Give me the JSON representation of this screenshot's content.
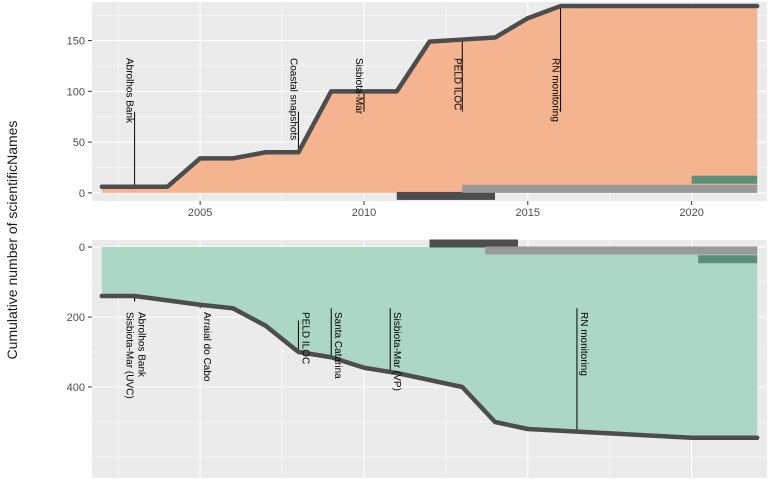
{
  "ylabel": "Cumulative number of scientificNames",
  "colors": {
    "panel_bg": "#ebebeb",
    "grid": "#ffffff",
    "top_fill": "#f4b490",
    "bottom_fill": "#acd6c6",
    "line": "#4d4d4d",
    "bar_dark": "#4d4d4d",
    "bar_grey": "#999999",
    "bar_green": "#5a8f78"
  },
  "chart_data": [
    {
      "type": "area",
      "panel": "top",
      "xlim": [
        2001.7,
        2022.3
      ],
      "ylim": [
        -8,
        188
      ],
      "x_ticks": [
        2005,
        2010,
        2015,
        2020
      ],
      "x_tick_labels": [
        "2005",
        "2010",
        "2015",
        "2020"
      ],
      "y_ticks": [
        0,
        50,
        100,
        150
      ],
      "y_tick_labels": [
        "0",
        "50",
        "100",
        "150"
      ],
      "points": [
        [
          2002,
          6
        ],
        [
          2004,
          6
        ],
        [
          2005,
          34
        ],
        [
          2006,
          34
        ],
        [
          2007,
          40
        ],
        [
          2008,
          40
        ],
        [
          2009,
          100
        ],
        [
          2010,
          100
        ],
        [
          2011,
          100
        ],
        [
          2012,
          149
        ],
        [
          2013,
          151
        ],
        [
          2014,
          153
        ],
        [
          2015,
          172
        ],
        [
          2016,
          184
        ],
        [
          2018,
          184
        ],
        [
          2022,
          184
        ]
      ],
      "annotations": [
        {
          "label": "Abrolhos Bank",
          "x": 2003,
          "y": 80
        },
        {
          "label": "Coastal snapshots",
          "x": 2008,
          "y": 80
        },
        {
          "label": "Sisbiota-Mar",
          "x": 2010,
          "y": 80
        },
        {
          "label": "PELD ILOC",
          "x": 2013,
          "y": 80
        },
        {
          "label": "RN monitoring",
          "x": 2016,
          "y": 80
        }
      ],
      "bars": [
        {
          "x0": 2011,
          "x1": 2014,
          "y": -3,
          "color": "bar_dark"
        },
        {
          "x0": 2013,
          "x1": 2022,
          "y": 4,
          "color": "bar_grey"
        },
        {
          "x0": 2020,
          "x1": 2022,
          "y": 13,
          "color": "bar_green"
        }
      ]
    },
    {
      "type": "area",
      "panel": "bottom",
      "xlim": [
        2001.7,
        2022.3
      ],
      "ylim": [
        -20,
        660
      ],
      "y_reversed": true,
      "y_ticks": [
        0,
        200,
        400
      ],
      "y_tick_labels": [
        "0",
        "200",
        "400"
      ],
      "points": [
        [
          2002,
          140
        ],
        [
          2003,
          140
        ],
        [
          2005,
          165
        ],
        [
          2006,
          175
        ],
        [
          2007,
          225
        ],
        [
          2008,
          300
        ],
        [
          2009,
          315
        ],
        [
          2010,
          345
        ],
        [
          2011,
          360
        ],
        [
          2012,
          380
        ],
        [
          2013,
          400
        ],
        [
          2014,
          500
        ],
        [
          2015,
          520
        ],
        [
          2017,
          530
        ],
        [
          2020,
          545
        ],
        [
          2022,
          545
        ]
      ],
      "annotations": [
        {
          "label": "Abrolhos Bank",
          "x": 2003,
          "y": 155
        },
        {
          "label": "Sisbiota-Mar (UVC)",
          "x": 2003,
          "y": 155
        },
        {
          "label": "Arraial do Cabo",
          "x": 2005,
          "y": 175
        },
        {
          "label": "PELD ILOC",
          "x": 2008,
          "y": 210
        },
        {
          "label": "Santa Catarina",
          "x": 2009,
          "y": 175
        },
        {
          "label": "Sisbiota-Mar (VP)",
          "x": 2010.8,
          "y": 175
        },
        {
          "label": "RN monitoring",
          "x": 2016.5,
          "y": 175
        }
      ],
      "bars": [
        {
          "x0": 2012,
          "x1": 2014.7,
          "y": -10,
          "color": "bar_dark"
        },
        {
          "x0": 2013.7,
          "x1": 2022,
          "y": 10,
          "color": "bar_grey"
        },
        {
          "x0": 2020.2,
          "x1": 2022,
          "y": 35,
          "color": "bar_green"
        }
      ]
    }
  ]
}
